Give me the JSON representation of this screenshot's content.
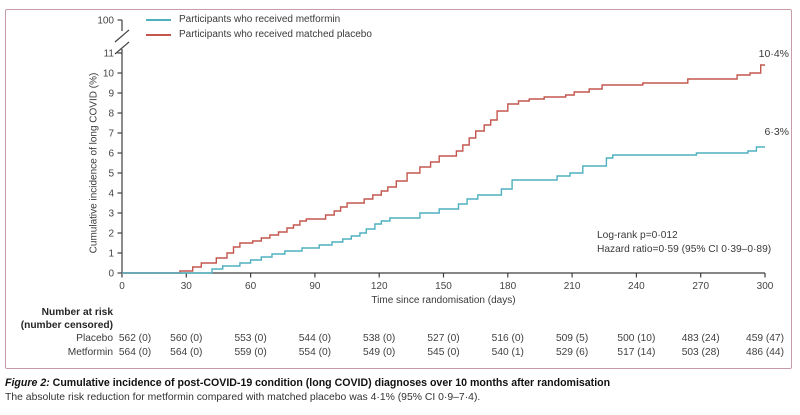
{
  "legend": {
    "items": [
      {
        "label": "Participants who received metformin",
        "color": "#4fb0c0"
      },
      {
        "label": "Participants who received matched placebo",
        "color": "#c4564e"
      }
    ]
  },
  "axes": {
    "x": {
      "title": "Time since randomisation (days)",
      "ticks": [
        0,
        30,
        60,
        90,
        120,
        150,
        180,
        210,
        240,
        270,
        300
      ]
    },
    "y": {
      "title": "Cumulative incidence of long COVID (%)",
      "ticks": [
        0,
        1,
        2,
        3,
        4,
        5,
        6,
        7,
        8,
        9,
        10,
        11
      ],
      "break_top_label": "100"
    }
  },
  "annotations": {
    "logrank": "Log-rank p=0·012",
    "hazard": "Hazard ratio=0·59 (95% CI 0·39–0·89)",
    "placebo_end_label": "10·4%",
    "metformin_end_label": "6·3%"
  },
  "risk_table": {
    "header_line1": "Number at risk",
    "header_line2": "(number censored)",
    "rows": [
      {
        "label": "Placebo",
        "values": [
          "562 (0)",
          "560 (0)",
          "553 (0)",
          "544 (0)",
          "538 (0)",
          "527 (0)",
          "516 (0)",
          "509 (5)",
          "500 (10)",
          "483 (24)",
          "459 (47)"
        ]
      },
      {
        "label": "Metformin",
        "values": [
          "564 (0)",
          "564 (0)",
          "559 (0)",
          "554 (0)",
          "549 (0)",
          "545 (0)",
          "540 (1)",
          "529 (6)",
          "517 (14)",
          "503 (28)",
          "486 (44)"
        ]
      }
    ]
  },
  "caption": {
    "prefix": "Figure 2:",
    "title": " Cumulative incidence of post-COVID-19 condition (long COVID) diagnoses over 10 months after randomisation",
    "body": "The absolute risk reduction for metformin compared with matched placebo was 4·1% (95% CI 0·9–7·4)."
  },
  "chart_data": {
    "type": "line",
    "subtype": "cumulative-incidence-step",
    "xlabel": "Time since randomisation (days)",
    "ylabel": "Cumulative incidence of long COVID (%)",
    "xlim": [
      0,
      300
    ],
    "ylim": [
      0,
      11
    ],
    "y_axis_break_top_label": 100,
    "grid": false,
    "legend_position": "top-left-inside",
    "annotations": [
      "Log-rank p=0·012",
      "Hazard ratio=0·59 (95% CI 0·39–0·89)"
    ],
    "series": [
      {
        "name": "Participants who received matched placebo",
        "color": "#c4564e",
        "final_value_label": "10·4%",
        "points": [
          [
            0,
            0
          ],
          [
            27,
            0.1
          ],
          [
            33,
            0.3
          ],
          [
            37,
            0.5
          ],
          [
            44,
            0.75
          ],
          [
            49,
            1.0
          ],
          [
            52,
            1.3
          ],
          [
            55,
            1.5
          ],
          [
            61,
            1.6
          ],
          [
            65,
            1.75
          ],
          [
            69,
            1.9
          ],
          [
            73,
            2.05
          ],
          [
            77,
            2.25
          ],
          [
            80,
            2.4
          ],
          [
            83,
            2.6
          ],
          [
            86,
            2.7
          ],
          [
            95,
            2.9
          ],
          [
            99,
            3.1
          ],
          [
            102,
            3.3
          ],
          [
            105,
            3.5
          ],
          [
            113,
            3.7
          ],
          [
            117,
            3.9
          ],
          [
            121,
            4.1
          ],
          [
            124,
            4.3
          ],
          [
            128,
            4.6
          ],
          [
            133,
            5.0
          ],
          [
            139,
            5.3
          ],
          [
            144,
            5.55
          ],
          [
            148,
            5.85
          ],
          [
            156,
            6.1
          ],
          [
            159,
            6.4
          ],
          [
            162,
            6.75
          ],
          [
            165,
            7.1
          ],
          [
            169,
            7.4
          ],
          [
            172,
            7.65
          ],
          [
            175,
            8.1
          ],
          [
            180,
            8.45
          ],
          [
            185,
            8.6
          ],
          [
            190,
            8.7
          ],
          [
            197,
            8.8
          ],
          [
            207,
            8.9
          ],
          [
            211,
            9.05
          ],
          [
            218,
            9.2
          ],
          [
            224,
            9.4
          ],
          [
            243,
            9.5
          ],
          [
            264,
            9.7
          ],
          [
            287,
            9.9
          ],
          [
            293,
            10.0
          ],
          [
            298,
            10.4
          ],
          [
            300,
            10.4
          ]
        ]
      },
      {
        "name": "Participants who received metformin",
        "color": "#4fb0c0",
        "final_value_label": "6·3%",
        "points": [
          [
            0,
            0
          ],
          [
            42,
            0.2
          ],
          [
            47,
            0.35
          ],
          [
            55,
            0.5
          ],
          [
            60,
            0.65
          ],
          [
            65,
            0.8
          ],
          [
            70,
            0.95
          ],
          [
            76,
            1.1
          ],
          [
            84,
            1.25
          ],
          [
            92,
            1.4
          ],
          [
            98,
            1.55
          ],
          [
            103,
            1.7
          ],
          [
            107,
            1.85
          ],
          [
            111,
            2.0
          ],
          [
            114,
            2.2
          ],
          [
            118,
            2.45
          ],
          [
            121,
            2.6
          ],
          [
            125,
            2.75
          ],
          [
            139,
            3.0
          ],
          [
            148,
            3.2
          ],
          [
            157,
            3.45
          ],
          [
            161,
            3.7
          ],
          [
            166,
            3.9
          ],
          [
            177,
            4.2
          ],
          [
            182,
            4.65
          ],
          [
            203,
            4.85
          ],
          [
            209,
            5.0
          ],
          [
            215,
            5.35
          ],
          [
            226,
            5.75
          ],
          [
            229,
            5.9
          ],
          [
            268,
            6.0
          ],
          [
            292,
            6.1
          ],
          [
            296,
            6.3
          ],
          [
            300,
            6.3
          ]
        ]
      }
    ]
  }
}
